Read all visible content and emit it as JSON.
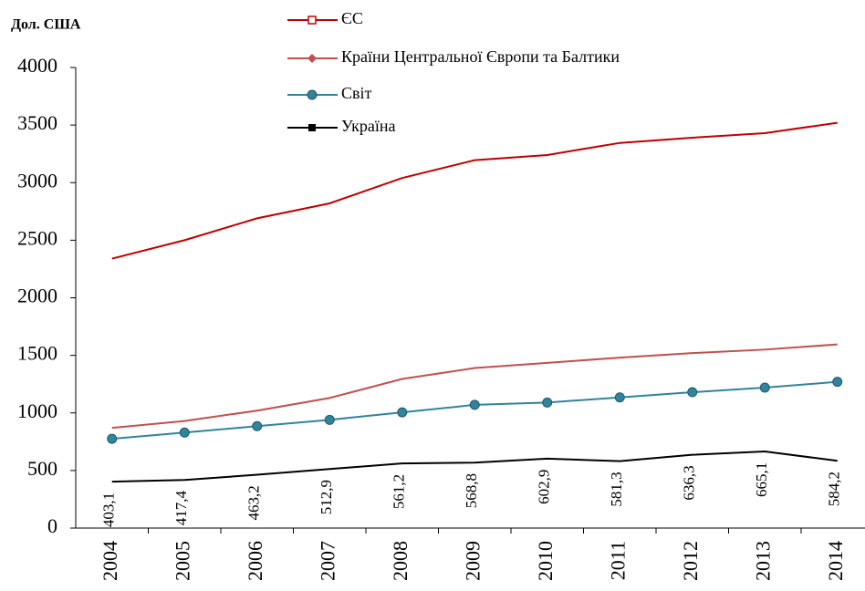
{
  "chart_data": {
    "type": "line",
    "ylabel": "Дол. США",
    "categories": [
      "2004",
      "2005",
      "2006",
      "2007",
      "2008",
      "2009",
      "2010",
      "2011",
      "2012",
      "2013",
      "2014"
    ],
    "series": [
      {
        "name": "ЄС",
        "color": "#c00000",
        "marker": "open-square",
        "values": [
          2340,
          2500,
          2690,
          2820,
          3040,
          3195,
          3240,
          3345,
          3390,
          3430,
          3520
        ]
      },
      {
        "name": "Країни Центральної Європи та Балтики",
        "color": "#c0504d",
        "marker": "diamond",
        "values": [
          870,
          930,
          1020,
          1130,
          1295,
          1390,
          1435,
          1480,
          1520,
          1550,
          1595
        ]
      },
      {
        "name": "Світ",
        "color": "#31849b",
        "marker": "circle",
        "values": [
          775,
          830,
          885,
          940,
          1005,
          1070,
          1090,
          1135,
          1180,
          1220,
          1270
        ]
      },
      {
        "name": "Україна",
        "color": "#000000",
        "marker": "square",
        "values": [
          403.1,
          417.4,
          463.2,
          512.9,
          561.2,
          568.8,
          602.9,
          581.3,
          636.3,
          665.1,
          584.2
        ],
        "value_labels": [
          "403,1",
          "417,4",
          "463,2",
          "512,9",
          "561,2",
          "568,8",
          "602,9",
          "581,3",
          "636,3",
          "665,1",
          "584,2"
        ]
      }
    ],
    "ylim": [
      0,
      4000
    ],
    "yticks": [
      0,
      500,
      1000,
      1500,
      2000,
      2500,
      3000,
      3500,
      4000
    ],
    "grid": false
  }
}
